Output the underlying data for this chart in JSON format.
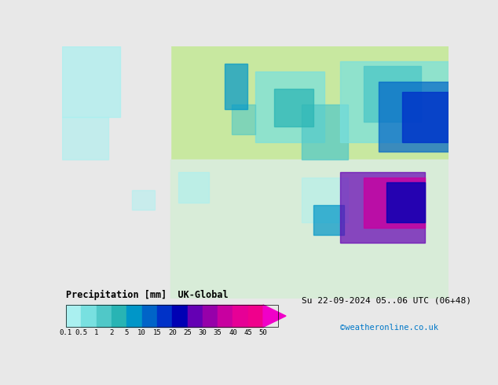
{
  "title_label": "Precipitation [mm]  UK-Global",
  "date_label": "Su 22-09-2024 05..06 UTC (06+48)",
  "credit_label": "©weatheronline.co.uk",
  "colorbar_levels": [
    0.1,
    0.5,
    1,
    2,
    5,
    10,
    15,
    20,
    25,
    30,
    35,
    40,
    45,
    50
  ],
  "colorbar_colors": [
    "#aaf0f0",
    "#78e0e0",
    "#50c8c8",
    "#28b4b4",
    "#0096c8",
    "#0064c8",
    "#0032c8",
    "#0000b4",
    "#6400b4",
    "#9600aa",
    "#c800a0",
    "#e60096",
    "#f0008c",
    "#f000c8"
  ],
  "bg_color": "#e8e8e8",
  "map_bg_light": "#d8ecd8",
  "map_bg_white": "#f0f0f0",
  "title_color": "#000000",
  "date_color": "#000000",
  "credit_color": "#0078c8",
  "colorbar_label_color": "#000000",
  "fig_width": 6.34,
  "fig_height": 4.9
}
